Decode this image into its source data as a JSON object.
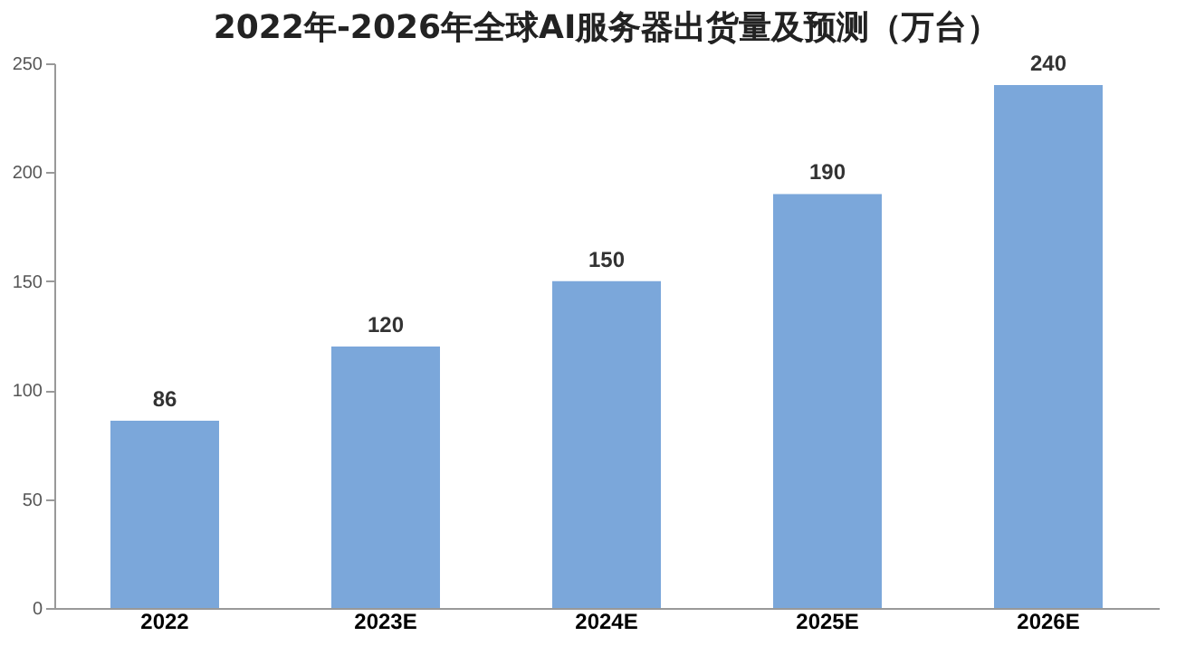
{
  "chart_data": {
    "type": "bar",
    "title": "2022年-2026年全球AI服务器出货量及预测（万台）",
    "categories": [
      "2022",
      "2023E",
      "2024E",
      "2025E",
      "2026E"
    ],
    "values": [
      86,
      120,
      150,
      190,
      240
    ],
    "color": "#7ba7da",
    "ylim": [
      0,
      250
    ],
    "yticks": [
      0,
      50,
      100,
      150,
      200,
      250
    ],
    "grid": false,
    "data_labels": true
  }
}
